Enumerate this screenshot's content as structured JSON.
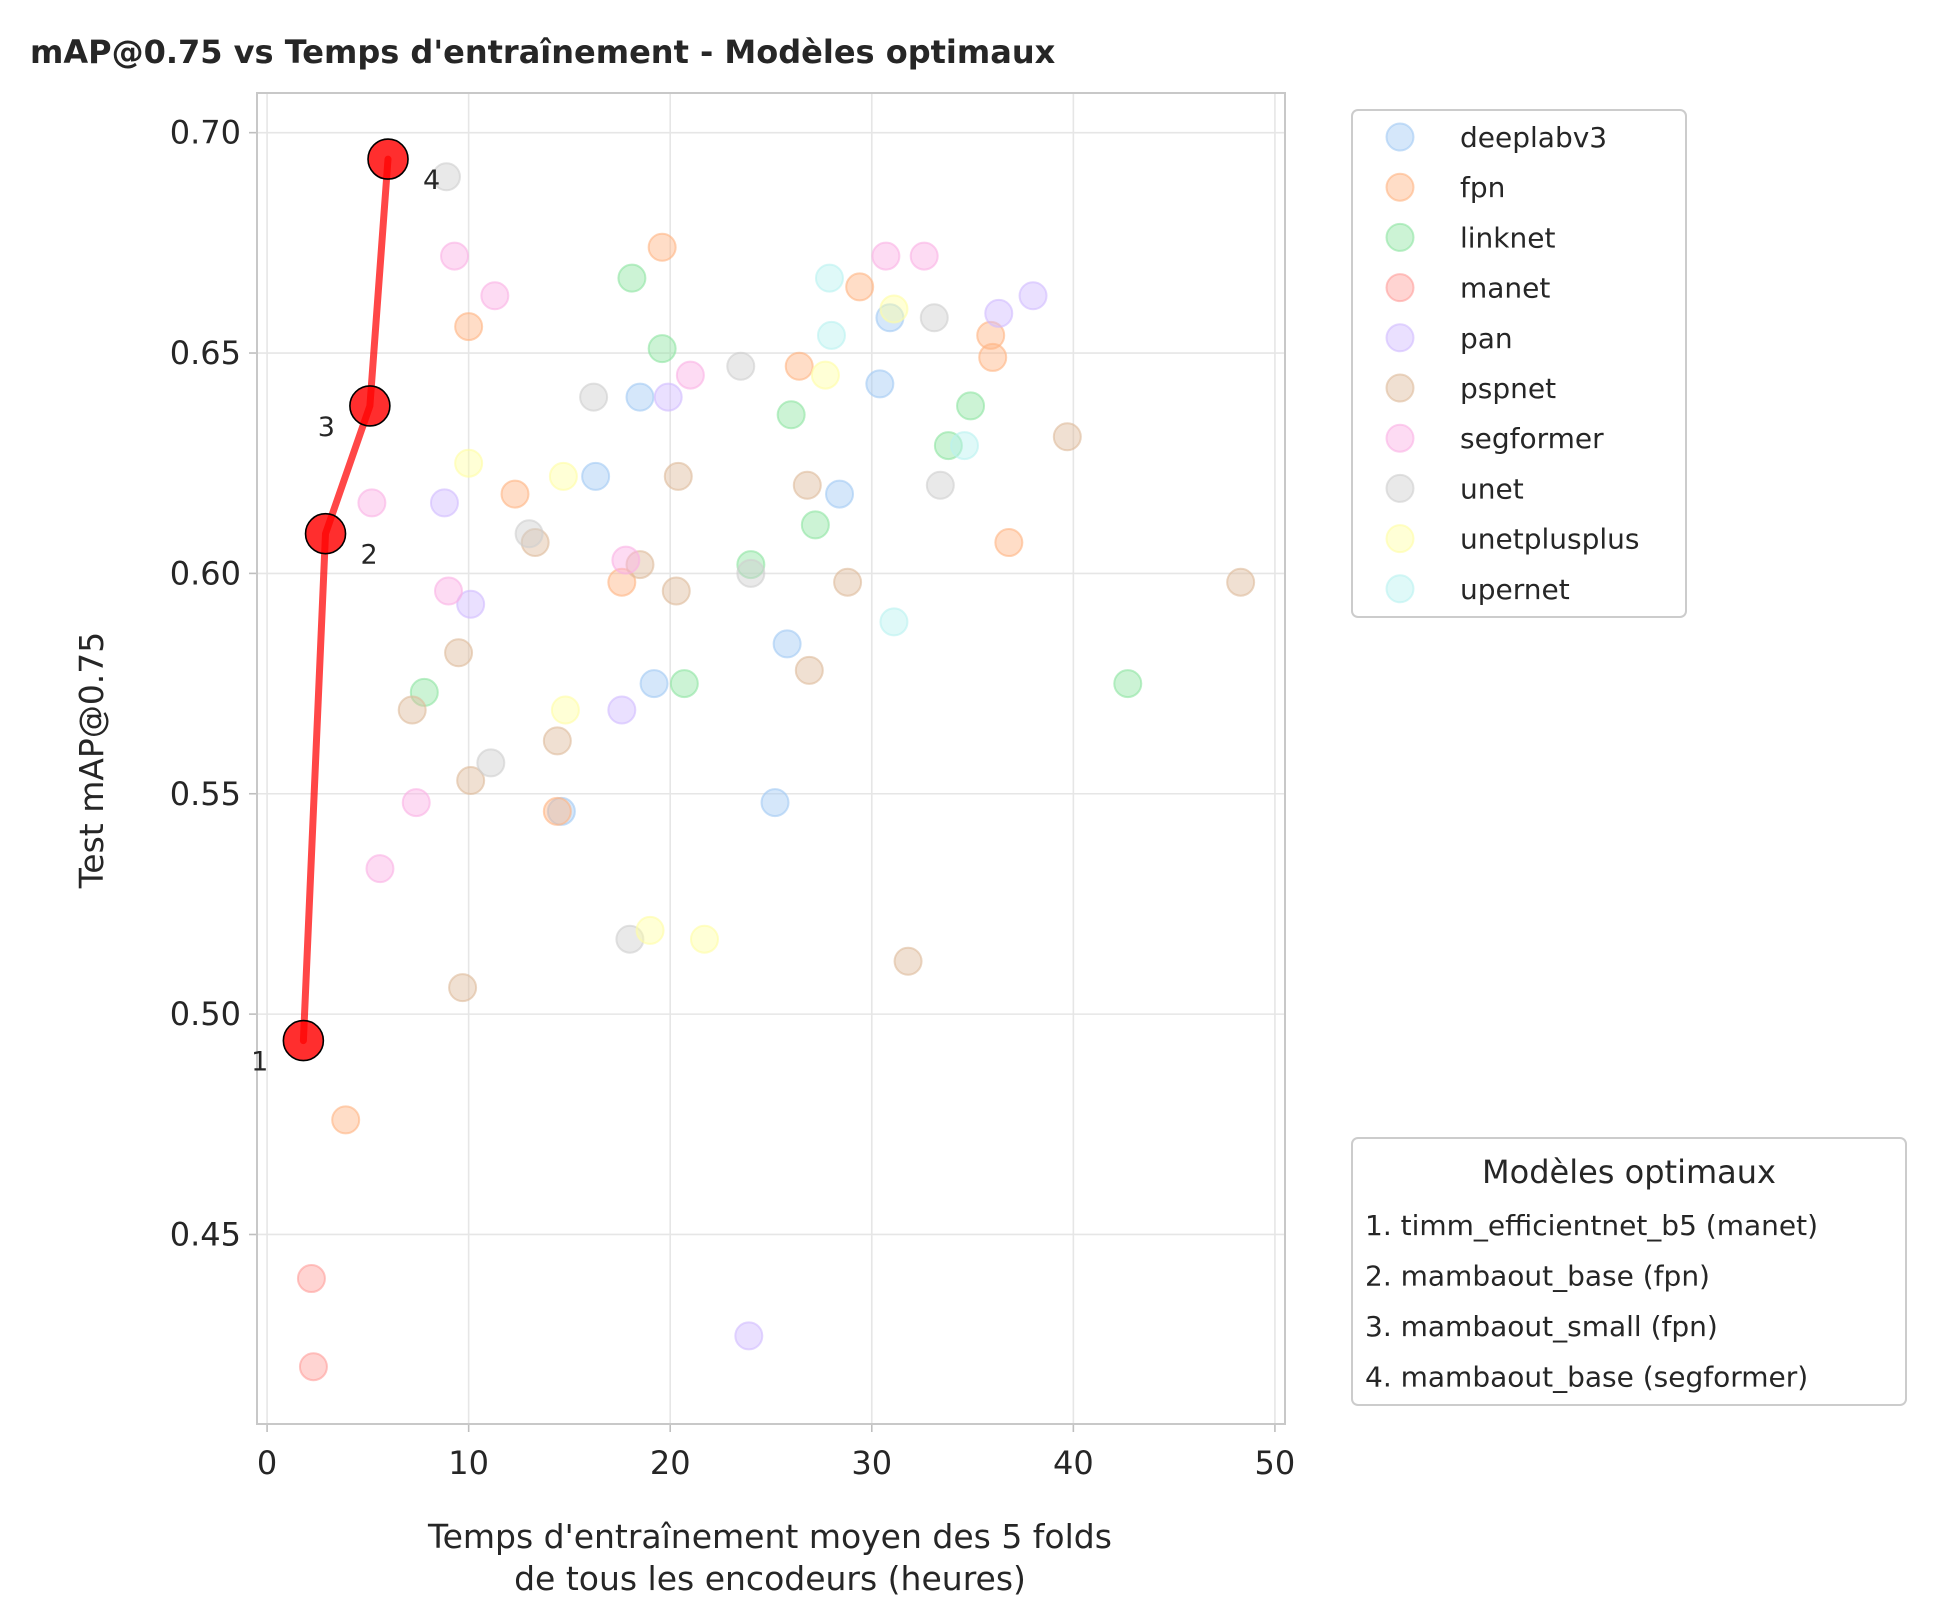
{
  "chart_data": {
    "type": "scatter",
    "title": "mAP@0.75 vs Temps d'entraînement - Modèles optimaux",
    "xlabel_lines": [
      "Temps d'entraînement moyen des 5 folds",
      "de tous les encodeurs (heures)"
    ],
    "ylabel": "Test mAP@0.75",
    "xlim": [
      -0.5,
      50.5
    ],
    "ylim": [
      0.407,
      0.709
    ],
    "xticks": [
      0,
      10,
      20,
      30,
      40,
      50
    ],
    "xtick_labels": [
      "0",
      "10",
      "20",
      "30",
      "40",
      "50"
    ],
    "yticks": [
      0.45,
      0.5,
      0.55,
      0.6,
      0.65,
      0.7
    ],
    "ytick_labels": [
      "0.45",
      "0.50",
      "0.55",
      "0.60",
      "0.65",
      "0.70"
    ],
    "grid": true,
    "legend_position": "upper-right-outside",
    "series": [
      {
        "name": "deeplabv3",
        "color": "#a1c9f4",
        "points": [
          [
            14.6,
            0.546
          ],
          [
            16.3,
            0.622
          ],
          [
            18.5,
            0.64
          ],
          [
            19.2,
            0.575
          ],
          [
            25.2,
            0.548
          ],
          [
            25.8,
            0.584
          ],
          [
            28.4,
            0.618
          ],
          [
            30.4,
            0.643
          ],
          [
            30.9,
            0.658
          ]
        ]
      },
      {
        "name": "fpn",
        "color": "#ffb482",
        "points": [
          [
            3.9,
            0.476
          ],
          [
            10.0,
            0.656
          ],
          [
            12.3,
            0.618
          ],
          [
            14.4,
            0.546
          ],
          [
            17.6,
            0.598
          ],
          [
            19.6,
            0.674
          ],
          [
            26.4,
            0.647
          ],
          [
            29.4,
            0.665
          ],
          [
            35.9,
            0.654
          ],
          [
            36.0,
            0.649
          ],
          [
            36.8,
            0.607
          ]
        ]
      },
      {
        "name": "linknet",
        "color": "#8de5a1",
        "points": [
          [
            7.8,
            0.573
          ],
          [
            18.1,
            0.667
          ],
          [
            19.6,
            0.651
          ],
          [
            20.7,
            0.575
          ],
          [
            24.0,
            0.602
          ],
          [
            26.0,
            0.636
          ],
          [
            27.2,
            0.611
          ],
          [
            33.8,
            0.629
          ],
          [
            34.9,
            0.638
          ],
          [
            42.7,
            0.575
          ]
        ]
      },
      {
        "name": "manet",
        "color": "#ff9f9b",
        "points": [
          [
            2.2,
            0.44
          ],
          [
            2.3,
            0.42
          ]
        ]
      },
      {
        "name": "pan",
        "color": "#d0bbff",
        "points": [
          [
            8.8,
            0.616
          ],
          [
            10.1,
            0.593
          ],
          [
            17.6,
            0.569
          ],
          [
            19.9,
            0.64
          ],
          [
            23.9,
            0.427
          ],
          [
            36.3,
            0.659
          ],
          [
            38.0,
            0.663
          ]
        ]
      },
      {
        "name": "pspnet",
        "color": "#debb9b",
        "points": [
          [
            7.2,
            0.569
          ],
          [
            9.5,
            0.582
          ],
          [
            9.7,
            0.506
          ],
          [
            10.1,
            0.553
          ],
          [
            13.3,
            0.607
          ],
          [
            14.4,
            0.562
          ],
          [
            18.5,
            0.602
          ],
          [
            20.3,
            0.596
          ],
          [
            20.4,
            0.622
          ],
          [
            26.8,
            0.62
          ],
          [
            26.9,
            0.578
          ],
          [
            28.8,
            0.598
          ],
          [
            31.8,
            0.512
          ],
          [
            39.7,
            0.631
          ],
          [
            48.3,
            0.598
          ]
        ]
      },
      {
        "name": "segformer",
        "color": "#fab0e4",
        "points": [
          [
            5.2,
            0.616
          ],
          [
            5.6,
            0.533
          ],
          [
            7.4,
            0.548
          ],
          [
            9.0,
            0.596
          ],
          [
            9.3,
            0.672
          ],
          [
            11.3,
            0.663
          ],
          [
            17.8,
            0.603
          ],
          [
            21.0,
            0.645
          ],
          [
            30.7,
            0.672
          ],
          [
            32.6,
            0.672
          ]
        ]
      },
      {
        "name": "unet",
        "color": "#cfcfcf",
        "points": [
          [
            8.9,
            0.69
          ],
          [
            11.1,
            0.557
          ],
          [
            13.0,
            0.609
          ],
          [
            16.2,
            0.64
          ],
          [
            18.0,
            0.517
          ],
          [
            23.5,
            0.647
          ],
          [
            24.0,
            0.6
          ],
          [
            33.1,
            0.658
          ],
          [
            33.4,
            0.62
          ]
        ]
      },
      {
        "name": "unetplusplus",
        "color": "#fffea3",
        "points": [
          [
            10.0,
            0.625
          ],
          [
            14.7,
            0.622
          ],
          [
            14.8,
            0.569
          ],
          [
            19.0,
            0.519
          ],
          [
            21.7,
            0.517
          ],
          [
            27.7,
            0.645
          ],
          [
            31.1,
            0.66
          ]
        ]
      },
      {
        "name": "upernet",
        "color": "#b9f2f0",
        "points": [
          [
            27.9,
            0.667
          ],
          [
            28.0,
            0.654
          ],
          [
            31.1,
            0.589
          ],
          [
            34.6,
            0.629
          ]
        ]
      }
    ],
    "pareto": {
      "color": "#ff0000",
      "points": [
        {
          "rank": "1",
          "x": 1.8,
          "y": 0.494,
          "label_side": "left"
        },
        {
          "rank": "2",
          "x": 2.9,
          "y": 0.609,
          "label_side": "right"
        },
        {
          "rank": "3",
          "x": 5.1,
          "y": 0.638,
          "label_side": "left"
        },
        {
          "rank": "4",
          "x": 6.0,
          "y": 0.694,
          "label_side": "right"
        }
      ]
    },
    "optimal_legend": {
      "title": "Modèles optimaux",
      "entries": [
        "1. timm_efficientnet_b5 (manet)",
        "2. mambaout_base (fpn)",
        "3. mambaout_small (fpn)",
        "4. mambaout_base (segformer)"
      ]
    }
  }
}
